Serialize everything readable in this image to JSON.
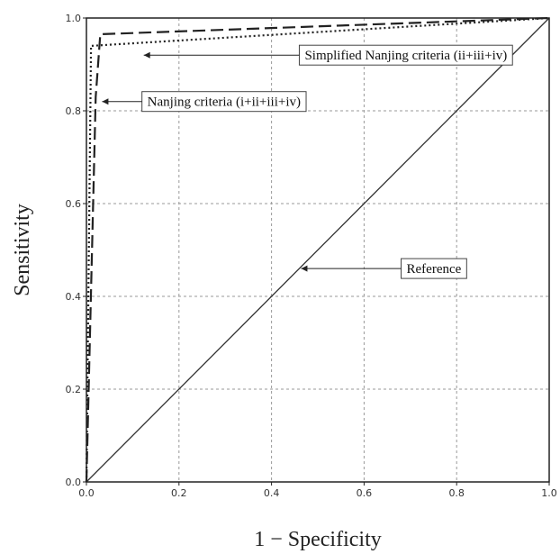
{
  "chart_data": {
    "type": "line",
    "title": "",
    "xlabel": "1 − Specificity",
    "ylabel": "Sensitivity",
    "xlim": [
      0,
      1
    ],
    "ylim": [
      0,
      1
    ],
    "x_ticks": [
      "0.0",
      "0.2",
      "0.4",
      "0.6",
      "0.8",
      "1.0"
    ],
    "y_ticks": [
      "0.0",
      "0.2",
      "0.4",
      "0.6",
      "0.8",
      "1.0"
    ],
    "grid": true,
    "series": [
      {
        "name": "Nanjing criteria (i+ii+iii+iv)",
        "style": "dashed",
        "color": "#222222",
        "points": [
          [
            0,
            0
          ],
          [
            0.02,
            0.83
          ],
          [
            0.03,
            0.965
          ],
          [
            1.0,
            1.0
          ]
        ]
      },
      {
        "name": "Simplified Nanjing criteria (ii+iii+iv)",
        "style": "dotted",
        "color": "#222222",
        "points": [
          [
            0,
            0
          ],
          [
            0.01,
            0.94
          ],
          [
            1.0,
            1.0
          ]
        ]
      },
      {
        "name": "Reference",
        "style": "solid",
        "color": "#333333",
        "points": [
          [
            0,
            0
          ],
          [
            1,
            1
          ]
        ]
      }
    ],
    "annotations": [
      {
        "text": "Simplified Nanjing criteria (ii+iii+iv)",
        "target": [
          0.12,
          0.92
        ],
        "arrow_from": [
          0.46,
          0.92
        ]
      },
      {
        "text": "Nanjing criteria (i+ii+iii+iv)",
        "target": [
          0.03,
          0.82
        ],
        "arrow_from": [
          0.12,
          0.82
        ]
      },
      {
        "text": "Reference",
        "target": [
          0.46,
          0.46
        ],
        "arrow_from": [
          0.68,
          0.46
        ]
      }
    ]
  }
}
